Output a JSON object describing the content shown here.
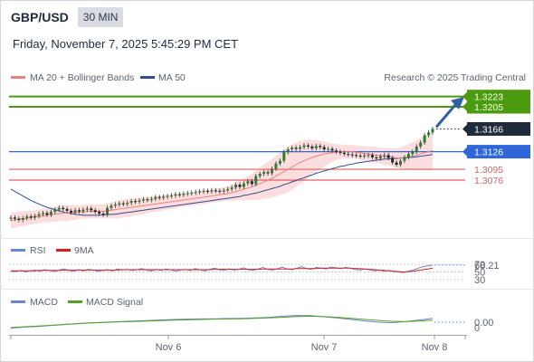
{
  "header": {
    "symbol": "GBP/USD",
    "timeframe": "30 MIN",
    "datetime": "Friday, November 7, 2025 5:45:29 PM CET"
  },
  "legend": {
    "ma20": "MA 20 + Bollinger Bands",
    "ma50": "MA 50",
    "credit": "Research © 2025 Trading Central",
    "rsi": "RSI",
    "rsi_ma": "9MA",
    "macd": "MACD",
    "macd_signal": "MACD Signal"
  },
  "colors": {
    "ma20": "#f08080",
    "ma50": "#2f4f8f",
    "bands_fill": "#fbd3d3",
    "resistance": "#4c9a0e",
    "pivot": "#2f67d8",
    "support": "#e06060",
    "current": "#1f2a3a",
    "arrow": "#2f5fa8",
    "rsi": "#6a84d6",
    "rsi_ma": "#d62020",
    "macd": "#6a84d6",
    "macd_signal": "#55a020"
  },
  "chart_data": [
    {
      "type": "candlestick",
      "title": "GBP/USD",
      "x_ticks": [
        "Nov 6",
        "Nov 7",
        "Nov 8"
      ],
      "ylim": [
        1.299,
        1.324
      ],
      "levels": [
        {
          "label": "1.3223",
          "value": 1.3223,
          "kind": "resistance"
        },
        {
          "label": "1.3205",
          "value": 1.3205,
          "kind": "resistance"
        },
        {
          "label": "1.3166",
          "value": 1.3166,
          "kind": "current"
        },
        {
          "label": "1.3126",
          "value": 1.3126,
          "kind": "pivot"
        },
        {
          "label": "1.3095",
          "value": 1.3095,
          "kind": "support"
        },
        {
          "label": "1.3076",
          "value": 1.3076,
          "kind": "support"
        }
      ],
      "close": [
        1.301,
        1.3008,
        1.3006,
        1.3009,
        1.3012,
        1.301,
        1.3013,
        1.3016,
        1.3018,
        1.3015,
        1.302,
        1.3024,
        1.3027,
        1.3025,
        1.3022,
        1.3019,
        1.3023,
        1.3021,
        1.3024,
        1.3026,
        1.3023,
        1.302,
        1.3017,
        1.3015,
        1.3027,
        1.3031,
        1.3033,
        1.3035,
        1.3034,
        1.3036,
        1.3039,
        1.3038,
        1.304,
        1.3042,
        1.3041,
        1.3043,
        1.3046,
        1.3045,
        1.3047,
        1.3048,
        1.3049,
        1.3051,
        1.305,
        1.3052,
        1.3053,
        1.3054,
        1.3055,
        1.3056,
        1.3057,
        1.3056,
        1.3058,
        1.3057,
        1.3056,
        1.3058,
        1.306,
        1.3063,
        1.3068,
        1.3064,
        1.307,
        1.3074,
        1.3069,
        1.3083,
        1.3087,
        1.309,
        1.3088,
        1.3096,
        1.3105,
        1.311,
        1.3125,
        1.313,
        1.3133,
        1.3131,
        1.3134,
        1.3137,
        1.3135,
        1.3132,
        1.3136,
        1.3134,
        1.313,
        1.3131,
        1.3128,
        1.3126,
        1.3124,
        1.3122,
        1.3121,
        1.312,
        1.3119,
        1.3118,
        1.3119,
        1.312,
        1.3116,
        1.3114,
        1.3118,
        1.312,
        1.3115,
        1.3107,
        1.3103,
        1.311,
        1.3116,
        1.3122,
        1.3126,
        1.3135,
        1.3142,
        1.3155,
        1.316,
        1.3166
      ],
      "ma20": [
        1.3005,
        1.3006,
        1.3007,
        1.3008,
        1.3009,
        1.301,
        1.3011,
        1.3012,
        1.3013,
        1.3014,
        1.3015,
        1.3016,
        1.3017,
        1.3018,
        1.3018,
        1.3019,
        1.3019,
        1.302,
        1.302,
        1.3021,
        1.3021,
        1.3021,
        1.3021,
        1.3021,
        1.3022,
        1.3023,
        1.3024,
        1.3025,
        1.3026,
        1.3027,
        1.3028,
        1.3029,
        1.303,
        1.3031,
        1.3032,
        1.3033,
        1.3034,
        1.3035,
        1.3036,
        1.3037,
        1.3038,
        1.3039,
        1.304,
        1.3041,
        1.3042,
        1.3043,
        1.3044,
        1.3045,
        1.3046,
        1.3047,
        1.3048,
        1.3049,
        1.305,
        1.3051,
        1.3052,
        1.3054,
        1.3056,
        1.3058,
        1.306,
        1.3062,
        1.3064,
        1.3067,
        1.307,
        1.3073,
        1.3076,
        1.3079,
        1.3083,
        1.3087,
        1.3091,
        1.3095,
        1.3099,
        1.3103,
        1.3107,
        1.311,
        1.3113,
        1.3116,
        1.3118,
        1.312,
        1.3122,
        1.3123,
        1.3124,
        1.3125,
        1.3126,
        1.3126,
        1.3126,
        1.3126,
        1.3125,
        1.3124,
        1.3123,
        1.3122,
        1.3121,
        1.312,
        1.3119,
        1.3118,
        1.3117,
        1.3116,
        1.3115,
        1.3115,
        1.3116,
        1.3117,
        1.3118,
        1.312,
        1.3122,
        1.3124,
        1.3126,
        1.3128
      ],
      "ma50": [
        1.306,
        1.3056,
        1.3052,
        1.3048,
        1.3044,
        1.304,
        1.3037,
        1.3034,
        1.3031,
        1.3028,
        1.3026,
        1.3024,
        1.3022,
        1.302,
        1.3018,
        1.3017,
        1.3016,
        1.3015,
        1.3014,
        1.3014,
        1.3014,
        1.3014,
        1.3014,
        1.3015,
        1.3015,
        1.3016,
        1.3016,
        1.3017,
        1.3018,
        1.3019,
        1.302,
        1.3021,
        1.3022,
        1.3023,
        1.3024,
        1.3025,
        1.3026,
        1.3027,
        1.3028,
        1.3029,
        1.303,
        1.3031,
        1.3032,
        1.3033,
        1.3034,
        1.3035,
        1.3036,
        1.3037,
        1.3038,
        1.3039,
        1.304,
        1.3041,
        1.3042,
        1.3043,
        1.3044,
        1.3045,
        1.3046,
        1.3047,
        1.3049,
        1.305,
        1.3052,
        1.3053,
        1.3055,
        1.3057,
        1.3059,
        1.3061,
        1.3063,
        1.3065,
        1.3068,
        1.307,
        1.3073,
        1.3075,
        1.3078,
        1.308,
        1.3083,
        1.3085,
        1.3088,
        1.309,
        1.3092,
        1.3094,
        1.3096,
        1.3098,
        1.31,
        1.3101,
        1.3103,
        1.3104,
        1.3106,
        1.3107,
        1.3108,
        1.3109,
        1.311,
        1.3111,
        1.3112,
        1.3113,
        1.3113,
        1.3114,
        1.3114,
        1.3115,
        1.3115,
        1.3116,
        1.3116,
        1.3117,
        1.3118,
        1.3119,
        1.312,
        1.3121
      ],
      "band_width": [
        0.0014,
        0.0014,
        0.0013,
        0.0013,
        0.0013,
        0.0012,
        0.0012,
        0.0012,
        0.0012,
        0.0012,
        0.0013,
        0.0013,
        0.0014,
        0.0014,
        0.0014,
        0.0013,
        0.0013,
        0.0012,
        0.0012,
        0.0012,
        0.0012,
        0.0012,
        0.0012,
        0.0012,
        0.0013,
        0.0014,
        0.0015,
        0.0016,
        0.0016,
        0.0016,
        0.0016,
        0.0015,
        0.0015,
        0.0015,
        0.0014,
        0.0014,
        0.0014,
        0.0014,
        0.0013,
        0.0013,
        0.0013,
        0.0013,
        0.0012,
        0.0012,
        0.0012,
        0.0012,
        0.0012,
        0.0012,
        0.0012,
        0.0012,
        0.0012,
        0.0012,
        0.0012,
        0.0012,
        0.0013,
        0.0014,
        0.0016,
        0.0017,
        0.0019,
        0.0021,
        0.0023,
        0.0026,
        0.0028,
        0.003,
        0.0032,
        0.0034,
        0.0036,
        0.0037,
        0.0039,
        0.004,
        0.004,
        0.0039,
        0.0038,
        0.0036,
        0.0034,
        0.0031,
        0.0028,
        0.0025,
        0.0022,
        0.0019,
        0.0016,
        0.0014,
        0.0013,
        0.0012,
        0.0012,
        0.0012,
        0.0012,
        0.0012,
        0.0013,
        0.0013,
        0.0014,
        0.0014,
        0.0014,
        0.0015,
        0.0015,
        0.0016,
        0.0017,
        0.0018,
        0.002,
        0.0022,
        0.0024,
        0.0026,
        0.0028,
        0.003,
        0.0032,
        0.0034
      ]
    },
    {
      "type": "line",
      "title": "RSI",
      "levels": [
        {
          "label": "70",
          "value": 70
        },
        {
          "label": "68.21",
          "value": 68.21
        },
        {
          "label": "50",
          "value": 50
        },
        {
          "label": "30",
          "value": 30
        }
      ],
      "ylim": [
        20,
        80
      ],
      "series": [
        {
          "name": "RSI",
          "values": [
            52,
            51,
            54,
            50,
            53,
            55,
            52,
            56,
            54,
            51,
            55,
            58,
            54,
            52,
            56,
            53,
            57,
            55,
            52,
            54,
            56,
            53,
            58,
            55,
            57,
            54,
            56,
            59,
            55,
            53,
            57,
            54,
            58,
            56,
            52,
            55,
            57,
            54,
            59,
            56,
            53,
            57,
            60,
            56,
            54,
            58,
            55,
            57,
            61,
            56,
            54,
            58,
            62,
            57,
            55,
            59,
            63,
            58,
            56,
            60,
            64,
            59,
            57,
            62,
            60,
            58,
            63,
            61,
            59,
            62,
            60,
            57,
            55,
            58,
            56,
            53,
            55,
            52,
            54,
            51,
            50,
            48,
            52,
            55,
            60,
            64,
            66,
            68.21
          ]
        },
        {
          "name": "9MA",
          "values": [
            53,
            53,
            53,
            53,
            53,
            53,
            54,
            54,
            54,
            54,
            54,
            55,
            55,
            55,
            55,
            55,
            55,
            55,
            55,
            55,
            55,
            55,
            55,
            56,
            56,
            56,
            56,
            56,
            56,
            56,
            56,
            56,
            56,
            56,
            56,
            56,
            56,
            56,
            56,
            56,
            56,
            56,
            57,
            57,
            57,
            57,
            57,
            57,
            57,
            57,
            57,
            57,
            58,
            58,
            58,
            58,
            58,
            58,
            58,
            59,
            59,
            59,
            59,
            59,
            60,
            60,
            60,
            60,
            60,
            60,
            60,
            59,
            59,
            58,
            57,
            56,
            55,
            54,
            53,
            52,
            51,
            50,
            51,
            52,
            54,
            56,
            58,
            60
          ]
        }
      ]
    },
    {
      "type": "line",
      "title": "MACD",
      "levels": [
        {
          "label": "0.00",
          "value": 0
        },
        {
          "label": "0",
          "value": 0
        }
      ],
      "ylim": [
        -1,
        1
      ],
      "series": [
        {
          "name": "MACD",
          "values": [
            -0.55,
            -0.45,
            -0.4,
            -0.3,
            -0.22,
            -0.12,
            -0.05,
            0.0,
            0.05,
            0.1,
            0.15,
            0.2,
            0.25,
            0.28,
            0.3,
            0.32,
            0.34,
            0.36,
            0.4,
            0.45,
            0.55,
            0.62,
            0.6,
            0.5,
            0.38,
            0.25,
            0.12,
            0.0,
            -0.05,
            0.05,
            0.2,
            0.35
          ]
        },
        {
          "name": "MACD Signal",
          "values": [
            -0.5,
            -0.42,
            -0.35,
            -0.28,
            -0.2,
            -0.13,
            -0.07,
            -0.02,
            0.03,
            0.07,
            0.11,
            0.15,
            0.19,
            0.22,
            0.25,
            0.28,
            0.3,
            0.32,
            0.35,
            0.39,
            0.45,
            0.52,
            0.55,
            0.52,
            0.45,
            0.36,
            0.26,
            0.16,
            0.08,
            0.05,
            0.1,
            0.18
          ]
        }
      ]
    }
  ]
}
